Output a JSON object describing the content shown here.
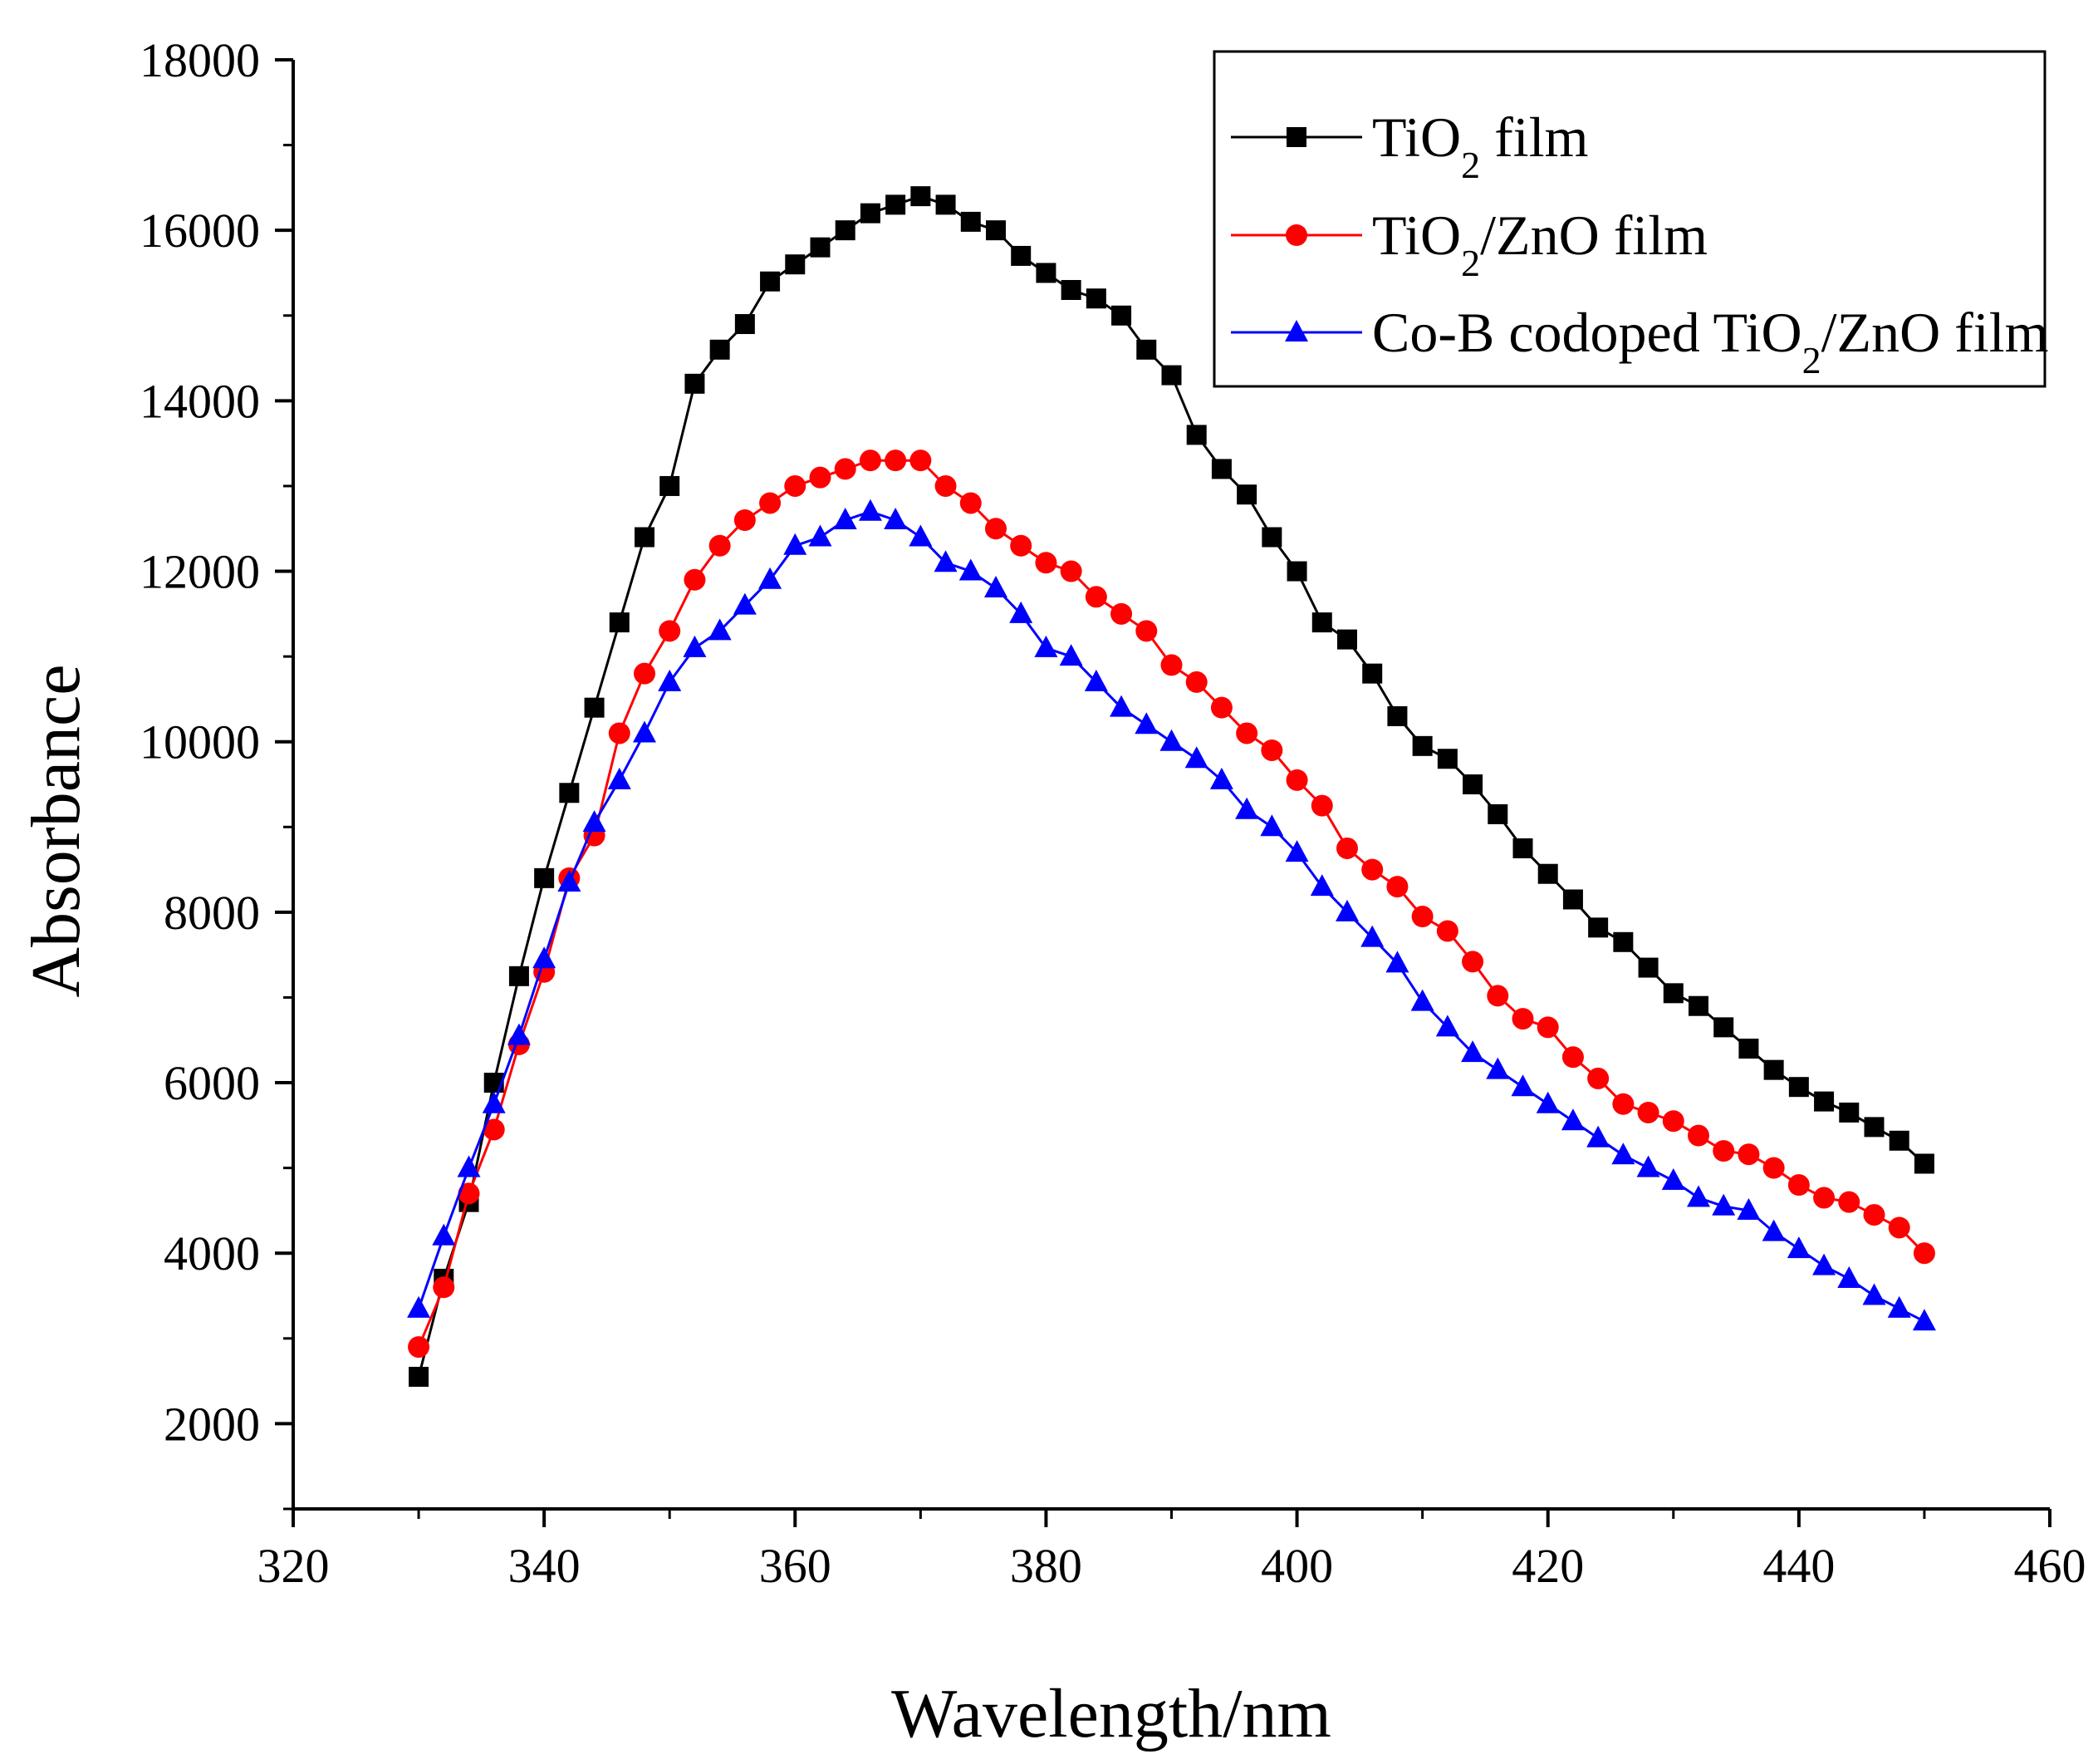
{
  "chart_data": {
    "type": "line",
    "xlabel": "Wavelength/nm",
    "ylabel": "Absorbance",
    "xlim": [
      320,
      460
    ],
    "ylim": [
      1000,
      18000
    ],
    "xticks": [
      320,
      340,
      360,
      380,
      400,
      420,
      440,
      460
    ],
    "yticks": [
      2000,
      4000,
      6000,
      8000,
      10000,
      12000,
      14000,
      16000,
      18000
    ],
    "xtick_labels": [
      "320",
      "340",
      "360",
      "380",
      "400",
      "420",
      "440",
      "460"
    ],
    "ytick_labels": [
      "2000",
      "4000",
      "6000",
      "8000",
      "10000",
      "12000",
      "14000",
      "16000",
      "18000"
    ],
    "legend_position": "top-right",
    "x": [
      330,
      332,
      334,
      336,
      338,
      340,
      342,
      344,
      346,
      348,
      350,
      352,
      354,
      356,
      358,
      360,
      362,
      364,
      366,
      368,
      370,
      372,
      374,
      376,
      378,
      380,
      382,
      384,
      386,
      388,
      390,
      392,
      394,
      396,
      398,
      400,
      402,
      404,
      406,
      408,
      410,
      412,
      414,
      416,
      418,
      420,
      422,
      424,
      426,
      428,
      430,
      432,
      434,
      436,
      438,
      440,
      442,
      444,
      446,
      448,
      450
    ],
    "series": [
      {
        "name": "TiO2 film",
        "legend": {
          "main": "TiO",
          "sub": "2",
          "rest": " film"
        },
        "color": "#000000",
        "marker": "square",
        "values": [
          2550,
          3700,
          4600,
          6000,
          7250,
          8400,
          9400,
          10400,
          11400,
          12400,
          13000,
          14200,
          14600,
          14900,
          15400,
          15600,
          15800,
          16000,
          16200,
          16300,
          16400,
          16300,
          16100,
          16000,
          15700,
          15500,
          15300,
          15200,
          15000,
          14600,
          14300,
          13600,
          13200,
          12900,
          12400,
          12000,
          11400,
          11200,
          10800,
          10300,
          9950,
          9800,
          9500,
          9150,
          8750,
          8450,
          8150,
          7820,
          7650,
          7350,
          7050,
          6900,
          6650,
          6400,
          6150,
          5950,
          5780,
          5650,
          5480,
          5320,
          5050
        ]
      },
      {
        "name": "TiO2/ZnO film",
        "legend": {
          "main": "TiO",
          "sub": "2",
          "rest": "/ZnO film"
        },
        "color": "#ff0000",
        "marker": "circle",
        "values": [
          2900,
          3600,
          4700,
          5450,
          6450,
          7300,
          8400,
          8900,
          10100,
          10800,
          11300,
          11900,
          12300,
          12600,
          12800,
          13000,
          13100,
          13200,
          13300,
          13300,
          13300,
          13000,
          12800,
          12500,
          12300,
          12100,
          12000,
          11700,
          11500,
          11300,
          10900,
          10700,
          10400,
          10100,
          9900,
          9550,
          9250,
          8750,
          8500,
          8300,
          7950,
          7780,
          7420,
          7020,
          6750,
          6650,
          6300,
          6050,
          5750,
          5650,
          5550,
          5380,
          5200,
          5160,
          5000,
          4800,
          4650,
          4600,
          4450,
          4300,
          4000
        ]
      },
      {
        "name": "Co-B codoped TiO2/ZnO film",
        "legend": {
          "main": "Co-B codoped TiO",
          "sub": "2",
          "rest": "/ZnO film"
        },
        "color": "#0000ff",
        "marker": "triangle",
        "values": [
          3350,
          4200,
          5000,
          5750,
          6550,
          7450,
          8350,
          9050,
          9550,
          10100,
          10700,
          11100,
          11300,
          11600,
          11900,
          12300,
          12400,
          12600,
          12700,
          12600,
          12400,
          12100,
          12000,
          11800,
          11500,
          11100,
          11000,
          10700,
          10400,
          10200,
          10000,
          9800,
          9550,
          9200,
          9000,
          8700,
          8300,
          8000,
          7700,
          7400,
          6950,
          6650,
          6350,
          6150,
          5950,
          5750,
          5550,
          5350,
          5150,
          5000,
          4850,
          4650,
          4550,
          4500,
          4250,
          4050,
          3850,
          3700,
          3500,
          3350,
          3200
        ]
      }
    ]
  }
}
